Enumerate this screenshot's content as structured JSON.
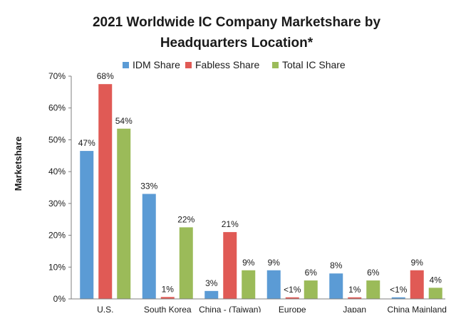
{
  "chart_data": {
    "type": "bar",
    "title_lines": [
      "2021 Worldwide IC Company Marketshare by",
      "Headquarters Location*"
    ],
    "xlabel": "",
    "ylabel": "Marketshare",
    "ylim": [
      0,
      70
    ],
    "yticks": [
      "0%",
      "10%",
      "20%",
      "30%",
      "40%",
      "50%",
      "60%",
      "70%"
    ],
    "ytick_values": [
      0,
      10,
      20,
      30,
      40,
      50,
      60,
      70
    ],
    "categories": [
      "U.S.",
      "South Korea",
      "China - (Taiwan)",
      "Europe",
      "Japan",
      "China Mainland"
    ],
    "series": [
      {
        "name": "IDM Share",
        "color": "#5b9bd5",
        "values": [
          46.5,
          33,
          2.5,
          9,
          8,
          0.5
        ],
        "labels": [
          "47%",
          "33%",
          "3%",
          "9%",
          "8%",
          "<1%"
        ]
      },
      {
        "name": "Fabless Share",
        "color": "#e05a55",
        "values": [
          67.5,
          0.6,
          21,
          0.5,
          0.5,
          9
        ],
        "labels": [
          "68%",
          "1%",
          "21%",
          "<1%",
          "1%",
          "9%"
        ]
      },
      {
        "name": "Total IC Share",
        "color": "#9bbb59",
        "values": [
          53.5,
          22.5,
          9,
          5.8,
          5.8,
          3.5
        ],
        "labels": [
          "54%",
          "22%",
          "9%",
          "6%",
          "6%",
          "4%"
        ]
      }
    ],
    "legend_position": "top",
    "grid": false
  }
}
